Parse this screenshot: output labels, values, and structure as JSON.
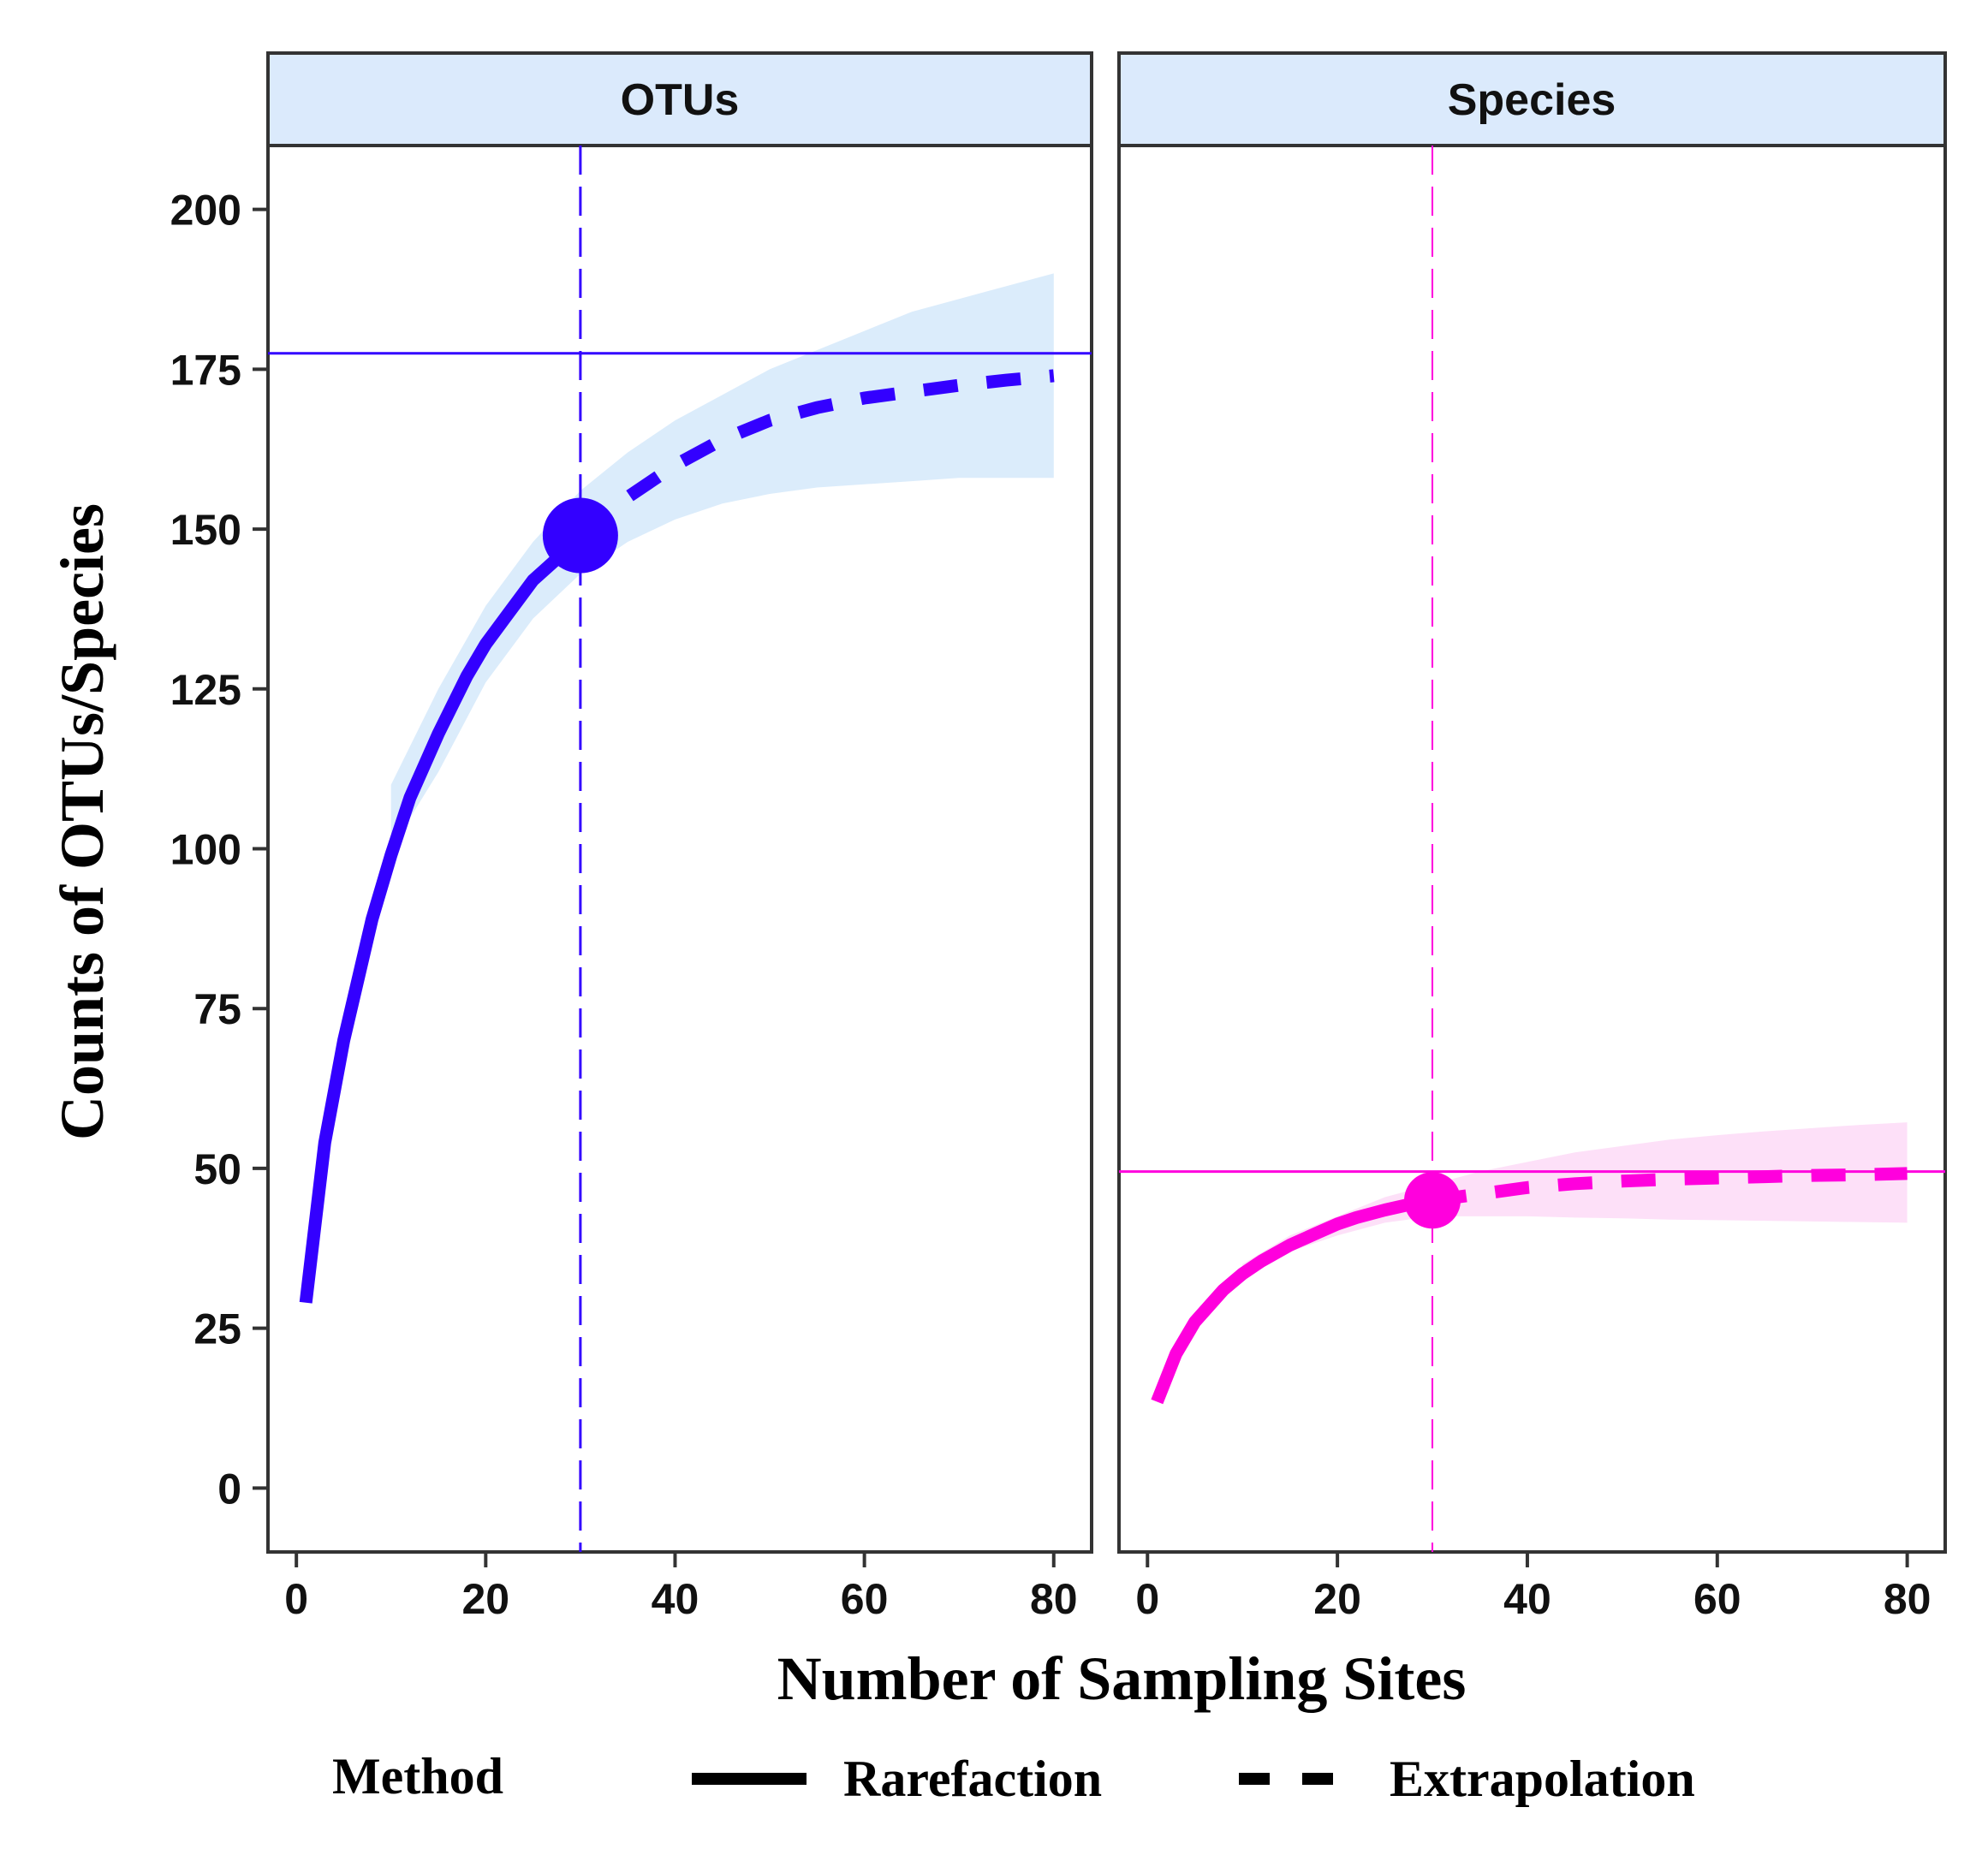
{
  "chart_data": {
    "type": "line",
    "xlabel": "Number of Sampling Sites",
    "ylabel": "Counts of OTUs/Species",
    "xlim": [
      -3,
      84
    ],
    "ylim": [
      -10,
      210
    ],
    "x_ticks": [
      "0",
      "20",
      "40",
      "60",
      "80"
    ],
    "y_ticks": [
      "0",
      "25",
      "50",
      "75",
      "100",
      "125",
      "150",
      "175",
      "200"
    ],
    "legend": {
      "title": "Method",
      "position": "bottom",
      "entries": [
        {
          "label": "Rarefaction",
          "linetype": "solid"
        },
        {
          "label": "Extrapolation",
          "linetype": "dashed"
        }
      ]
    },
    "panels": [
      {
        "title": "OTUs",
        "color": "#3300ff",
        "band_color": "#dbecfb",
        "observed": {
          "x": 30,
          "y": 149
        },
        "asymptote": 177.5,
        "rarefaction": {
          "x": [
            1,
            3,
            5,
            8,
            10,
            12,
            15,
            18,
            20,
            22,
            25,
            28,
            30
          ],
          "y": [
            29,
            54,
            70,
            89,
            99,
            108,
            118,
            127,
            132,
            136,
            142,
            146,
            149
          ]
        },
        "extrapolation": {
          "x": [
            30,
            35,
            40,
            45,
            50,
            55,
            60,
            65,
            70,
            75,
            80
          ],
          "y": [
            149,
            155,
            160,
            164,
            167,
            169,
            170.5,
            171.5,
            172.5,
            173.3,
            174
          ]
        },
        "ci_lower": {
          "x": [
            10,
            15,
            20,
            25,
            30,
            35,
            40,
            45,
            50,
            55,
            60,
            65,
            70,
            75,
            80
          ],
          "y": [
            100,
            112,
            126,
            136,
            143,
            148,
            151.5,
            154,
            155.5,
            156.5,
            157,
            157.5,
            158,
            158,
            158
          ]
        },
        "ci_upper": {
          "x": [
            10,
            15,
            20,
            25,
            30,
            35,
            40,
            45,
            50,
            55,
            60,
            65,
            70,
            75,
            80
          ],
          "y": [
            110,
            125,
            138,
            148,
            156,
            162,
            167,
            171,
            175,
            178,
            181,
            184,
            186,
            188,
            190
          ]
        }
      },
      {
        "title": "Species",
        "color": "#ff00dd",
        "band_color": "#fde0f8",
        "observed": {
          "x": 30,
          "y": 45
        },
        "asymptote": 49.5,
        "rarefaction": {
          "x": [
            1,
            3,
            5,
            8,
            10,
            12,
            15,
            18,
            20,
            22,
            25,
            28,
            30
          ],
          "y": [
            13.5,
            21,
            26,
            31,
            33.5,
            35.5,
            38,
            40,
            41.3,
            42.3,
            43.5,
            44.5,
            45
          ]
        },
        "extrapolation": {
          "x": [
            30,
            35,
            40,
            45,
            50,
            55,
            60,
            65,
            70,
            75,
            80
          ],
          "y": [
            45,
            46,
            47,
            47.6,
            48,
            48.3,
            48.5,
            48.7,
            48.9,
            49,
            49.2
          ]
        },
        "ci_lower": {
          "x": [
            10,
            15,
            20,
            25,
            30,
            35,
            40,
            45,
            50,
            55,
            60,
            65,
            70,
            75,
            80
          ],
          "y": [
            33,
            37,
            39.5,
            41.5,
            42.5,
            42.5,
            42.5,
            42.3,
            42.2,
            42,
            41.9,
            41.8,
            41.7,
            41.6,
            41.5
          ]
        },
        "ci_upper": {
          "x": [
            10,
            15,
            20,
            25,
            30,
            35,
            40,
            45,
            50,
            55,
            60,
            65,
            70,
            75,
            80
          ],
          "y": [
            35,
            39.5,
            42.5,
            45.5,
            47.5,
            49.5,
            51,
            52.5,
            53.5,
            54.5,
            55.2,
            55.8,
            56.3,
            56.8,
            57.2
          ]
        }
      }
    ]
  }
}
